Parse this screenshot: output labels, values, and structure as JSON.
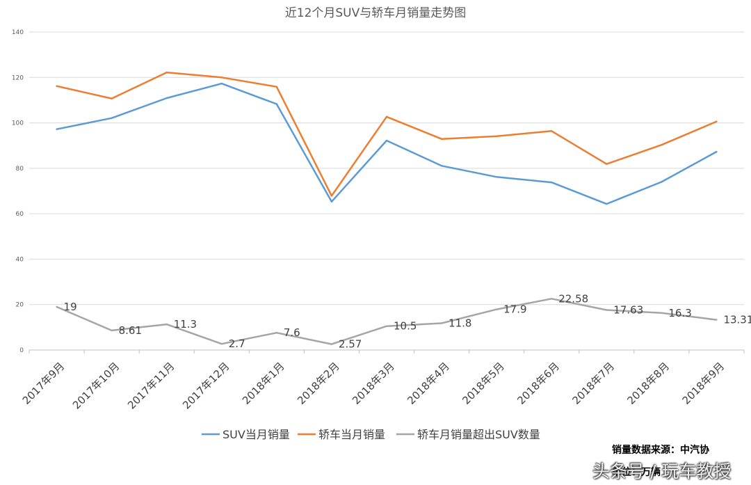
{
  "chart_data": {
    "type": "line",
    "title": "近12个月SUV与轿车月销量走势图",
    "categories": [
      "2017年9月",
      "2017年10月",
      "2017年11月",
      "2017年12月",
      "2018年1月",
      "2018年2月",
      "2018年3月",
      "2018年4月",
      "2018年5月",
      "2018年6月",
      "2018年7月",
      "2018年8月",
      "2018年9月"
    ],
    "yticks": [
      "0",
      "20",
      "40",
      "60",
      "80",
      "100",
      "120",
      "140"
    ],
    "ylim": [
      0,
      140
    ],
    "grid": true,
    "legend_position": "bottom",
    "series": [
      {
        "name": "SUV当月销量",
        "color": "#5b9bd5",
        "values": [
          97.2,
          102.1,
          110.9,
          117.3,
          108.3,
          65.3,
          92.2,
          81.1,
          76.2,
          73.8,
          64.3,
          74.0,
          87.3
        ]
      },
      {
        "name": "轿车当月销量",
        "color": "#ed7d31",
        "values": [
          116.2,
          110.7,
          122.2,
          120.0,
          115.9,
          67.9,
          102.7,
          92.9,
          94.1,
          96.4,
          81.9,
          90.3,
          100.6
        ]
      },
      {
        "name": "轿车月销量超出SUV数量",
        "color": "#a5a5a5",
        "values": [
          19,
          8.61,
          11.3,
          2.7,
          7.6,
          2.57,
          10.5,
          11.8,
          17.9,
          22.58,
          17.63,
          16.3,
          13.31
        ],
        "labels": [
          "19",
          "8.61",
          "11.3",
          "2.7",
          "7.6",
          "2.57",
          "10.5",
          "11.8",
          "17.9",
          "22.58",
          "17.63",
          "16.3",
          "13.31"
        ]
      }
    ]
  },
  "footer": {
    "source": "销量数据来源：中汽协",
    "unit": "单位：万辆",
    "watermark": "头条号 / 玩车教授"
  }
}
